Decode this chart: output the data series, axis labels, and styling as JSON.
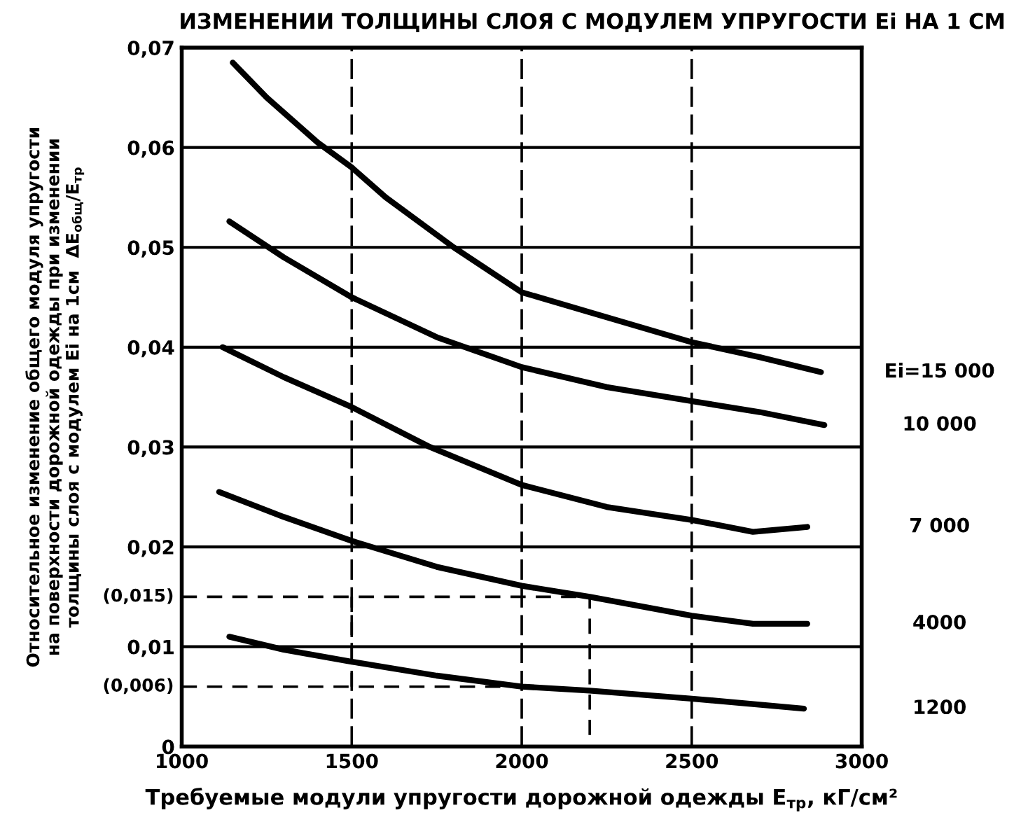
{
  "chart_data": {
    "type": "line",
    "title": "ИЗМЕНЕНИИ ТОЛЩИНЫ СЛОЯ С МОДУЛЕМ УПРУГОСТИ Ei НА 1 СМ",
    "xlabel": "Требуемые модули упругости дорожной одежды E$_{тр}$, кГ/см²",
    "ylabel": "Относительное изменение общего модуля упругости\nна поверхности дорожной одежды при изменении\nтолщины слоя с модулем Ei на 1см  ΔE$_{общ}$/E$_{тр}$",
    "xlim": [
      1000,
      3000
    ],
    "xticks": [
      1000,
      1500,
      2000,
      2500,
      3000
    ],
    "ylim": [
      0,
      0.07
    ],
    "yticks": [
      {
        "value": 0,
        "label": "0"
      },
      {
        "value": 0.01,
        "label": "0,01"
      },
      {
        "value": 0.02,
        "label": "0,02"
      },
      {
        "value": 0.03,
        "label": "0,03"
      },
      {
        "value": 0.04,
        "label": "0,04"
      },
      {
        "value": 0.05,
        "label": "0,05"
      },
      {
        "value": 0.06,
        "label": "0,06"
      },
      {
        "value": 0.07,
        "label": "0,07"
      }
    ],
    "grid": true,
    "legend": false,
    "marker": "none",
    "line_style": "solid",
    "annotations": [
      {
        "text": "(0,015)",
        "x": 1000,
        "y": 0.015
      },
      {
        "text": "(0,006)",
        "x": 1000,
        "y": 0.006
      }
    ],
    "series": [
      {
        "name": "Ei=15 000",
        "color": "#000000",
        "x": [
          1150,
          1250,
          1400,
          1500,
          1600,
          1800,
          2000,
          2200,
          2500,
          2700,
          2880
        ],
        "values": [
          0.0685,
          0.065,
          0.0605,
          0.058,
          0.055,
          0.05,
          0.0455,
          0.0435,
          0.0405,
          0.039,
          0.0375
        ]
      },
      {
        "name": "10 000",
        "color": "#000000",
        "x": [
          1140,
          1300,
          1500,
          1750,
          2000,
          2250,
          2500,
          2700,
          2890
        ],
        "values": [
          0.0526,
          0.049,
          0.045,
          0.041,
          0.038,
          0.036,
          0.0346,
          0.0335,
          0.0322
        ]
      },
      {
        "name": "7 000",
        "color": "#000000",
        "x": [
          1120,
          1300,
          1500,
          1730,
          2000,
          2250,
          2500,
          2680,
          2840
        ],
        "values": [
          0.04,
          0.037,
          0.034,
          0.03,
          0.0262,
          0.024,
          0.0227,
          0.0215,
          0.022
        ]
      },
      {
        "name": "4000",
        "color": "#000000",
        "x": [
          1110,
          1300,
          1500,
          1750,
          2000,
          2200,
          2500,
          2680,
          2840
        ],
        "values": [
          0.0255,
          0.023,
          0.0206,
          0.018,
          0.0161,
          0.015,
          0.0131,
          0.0123,
          0.0123
        ]
      },
      {
        "name": "1200",
        "color": "#000000",
        "x": [
          1140,
          1300,
          1500,
          1750,
          2000,
          2200,
          2500,
          2830
        ],
        "values": [
          0.011,
          0.0097,
          0.0085,
          0.0071,
          0.006,
          0.0056,
          0.0048,
          0.0038
        ]
      },
      {
        "color": "#000000",
        "line_style": "dashed",
        "x": [
          1000,
          2200,
          2200
        ],
        "values": [
          0.015,
          0.015,
          0
        ]
      },
      {
        "color": "#000000",
        "line_style": "dashed",
        "x": [
          1000,
          2000
        ],
        "values": [
          0.006,
          0.006
        ]
      },
      {
        "color": "#000000",
        "line_style": "dashed",
        "x": [
          1500,
          1500
        ],
        "values": [
          0.015,
          0.006
        ]
      }
    ]
  }
}
